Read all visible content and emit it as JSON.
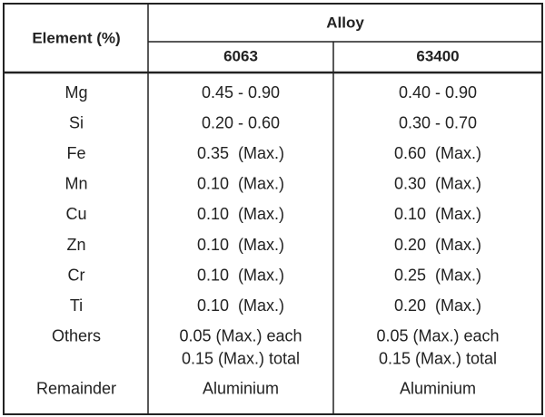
{
  "header": {
    "title": "Element (%)",
    "group": "Alloy",
    "columns": [
      "6063",
      "63400"
    ]
  },
  "table": {
    "rows": [
      [
        "Mg",
        "0.45 - 0.90",
        "0.40 - 0.90"
      ],
      [
        "Si",
        "0.20 - 0.60",
        "0.30 - 0.70"
      ],
      [
        "Fe",
        "0.35  (Max.)",
        "0.60  (Max.)"
      ],
      [
        "Mn",
        "0.10  (Max.)",
        "0.30  (Max.)"
      ],
      [
        "Cu",
        "0.10  (Max.)",
        "0.10  (Max.)"
      ],
      [
        "Zn",
        "0.10  (Max.)",
        "0.20  (Max.)"
      ],
      [
        "Cr",
        "0.10  (Max.)",
        "0.25  (Max.)"
      ],
      [
        "Ti",
        "0.10  (Max.)",
        "0.20  (Max.)"
      ],
      [
        "Others",
        [
          "0.05 (Max.) each",
          "0.15 (Max.) total"
        ],
        [
          "0.05 (Max.) each",
          "0.15 (Max.) total"
        ]
      ],
      [
        "Remainder",
        "Aluminium",
        "Aluminium"
      ]
    ]
  }
}
